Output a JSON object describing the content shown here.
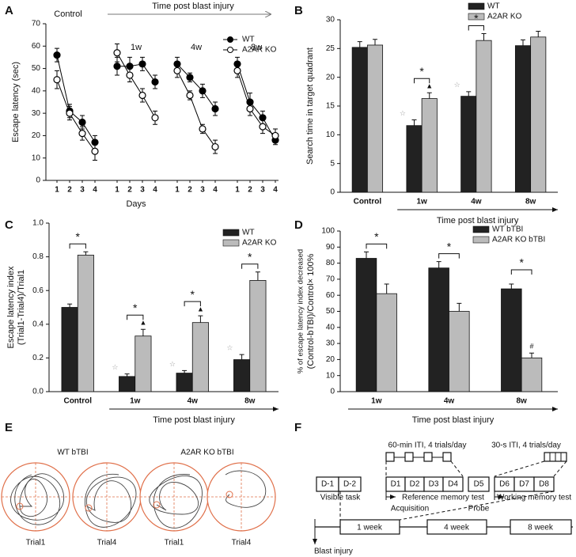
{
  "chart_data": [
    {
      "type": "line",
      "panel": "A",
      "annotation": "Time post blast injury",
      "groups": [
        "Control",
        "1w",
        "4w",
        "8w"
      ],
      "categories": [
        "1",
        "2",
        "3",
        "4",
        "1",
        "2",
        "3",
        "4",
        "1",
        "2",
        "3",
        "4",
        "1",
        "2",
        "3",
        "4"
      ],
      "xlabel": "Days",
      "ylabel": [
        "Escape latency (sec)"
      ],
      "ylim": [
        0,
        70
      ],
      "yticks": [
        0,
        10,
        20,
        30,
        40,
        50,
        60,
        70
      ],
      "series": [
        {
          "name": "WT",
          "color": "#000000",
          "fill": "#000000",
          "values": [
            56,
            31,
            26,
            17,
            51,
            51,
            52,
            44,
            52,
            46,
            40,
            32,
            52,
            35,
            28,
            18
          ],
          "errors": [
            3,
            3,
            3,
            3,
            4,
            4,
            3,
            3,
            3,
            2,
            3,
            3,
            3,
            4,
            3,
            2
          ]
        },
        {
          "name": "A2AR KO",
          "color": "#000000",
          "fill": "#ffffff",
          "values": [
            45,
            30,
            21,
            13,
            57,
            47,
            38,
            28,
            49,
            38,
            23,
            15,
            49,
            32,
            24,
            20
          ],
          "errors": [
            4,
            3,
            3,
            4,
            4,
            3,
            3,
            3,
            3,
            2,
            2,
            3,
            3,
            3,
            3,
            3
          ]
        }
      ]
    },
    {
      "type": "bar",
      "panel": "B",
      "categories": [
        "Control",
        "1w",
        "4w",
        "8w"
      ],
      "xlabel": "Time post blast injury",
      "ylabel": [
        "Search time in target quadrant"
      ],
      "ylim": [
        0,
        30
      ],
      "yticks": [
        0,
        5,
        10,
        15,
        20,
        25,
        30
      ],
      "significance": [
        null,
        "*",
        "*",
        null
      ],
      "series": [
        {
          "name": "WT",
          "color": "#222222",
          "values": [
            25.2,
            11.6,
            16.7,
            25.5
          ],
          "errors": [
            1.0,
            1.0,
            0.8,
            1.0
          ],
          "markers": [
            null,
            "☆",
            "☆",
            null
          ]
        },
        {
          "name": "A2AR KO",
          "color": "#bbbbbb",
          "values": [
            25.6,
            16.3,
            26.4,
            27.0
          ],
          "errors": [
            1.0,
            1.0,
            1.2,
            1.0
          ],
          "markers": [
            null,
            "▲",
            null,
            null
          ]
        }
      ]
    },
    {
      "type": "bar",
      "panel": "C",
      "categories": [
        "Control",
        "1w",
        "4w",
        "8w"
      ],
      "xlabel": "Time post blast injury",
      "ylabel": [
        "Escape latency index",
        "(Trial1-Trial4)/Trial1"
      ],
      "ylim": [
        0,
        1
      ],
      "yticks": [
        {
          "value": 0,
          "label": "0.0"
        },
        0.2,
        0.4,
        0.6,
        0.8,
        {
          "value": 1,
          "label": "1.0"
        }
      ],
      "significance": [
        "*",
        "*",
        "*",
        "*"
      ],
      "series": [
        {
          "name": "WT",
          "color": "#222222",
          "values": [
            0.5,
            0.09,
            0.11,
            0.19
          ],
          "errors": [
            0.02,
            0.015,
            0.015,
            0.03
          ],
          "markers": [
            null,
            "☆",
            "☆",
            "☆"
          ]
        },
        {
          "name": "A2AR KO",
          "color": "#bbbbbb",
          "values": [
            0.81,
            0.33,
            0.41,
            0.66
          ],
          "errors": [
            0.02,
            0.04,
            0.04,
            0.05
          ],
          "markers": [
            null,
            "▲",
            "▲",
            null
          ]
        }
      ]
    },
    {
      "type": "bar",
      "panel": "D",
      "categories": [
        "1w",
        "4w",
        "8w"
      ],
      "xlabel": "Time post blast injury",
      "ylabel": [
        "% of escape latency index decreased",
        "(Control-bTBI)/Control× 100%"
      ],
      "ylim": [
        0,
        100
      ],
      "yticks": [
        0,
        10,
        20,
        30,
        40,
        50,
        60,
        70,
        80,
        90,
        100
      ],
      "significance": [
        "*",
        "*",
        "*"
      ],
      "series": [
        {
          "name": "WT bTBI",
          "color": "#222222",
          "values": [
            83,
            77,
            64
          ],
          "errors": [
            4,
            4,
            3
          ],
          "markers": [
            null,
            null,
            null
          ]
        },
        {
          "name": "A2AR KO bTBI",
          "color": "#bbbbbb",
          "values": [
            61,
            50,
            21
          ],
          "errors": [
            6,
            5,
            3
          ],
          "markers": [
            null,
            null,
            "#"
          ]
        }
      ]
    }
  ],
  "panel_e": {
    "panel": "E",
    "groups": [
      {
        "title": "WT bTBI",
        "trials": [
          "Trial1",
          "Trial4"
        ]
      },
      {
        "title": "A2AR KO bTBI",
        "trials": [
          "Trial1",
          "Trial4"
        ]
      }
    ]
  },
  "panel_f": {
    "panel": "F",
    "sessions": [
      "60-min ITI, 4 trials/day",
      "30-s ITI, 4 trials/day"
    ],
    "days": [
      "D-1",
      "D-2",
      "D1",
      "D2",
      "D3",
      "D4",
      "D5",
      "D6",
      "D7",
      "D8"
    ],
    "phases": [
      "Visible task",
      "Reference memory test",
      "Acquisition",
      "Probe",
      "Working memory test"
    ],
    "weeks": [
      "1 week",
      "4 week",
      "8 week"
    ],
    "event": "Blast injury"
  }
}
